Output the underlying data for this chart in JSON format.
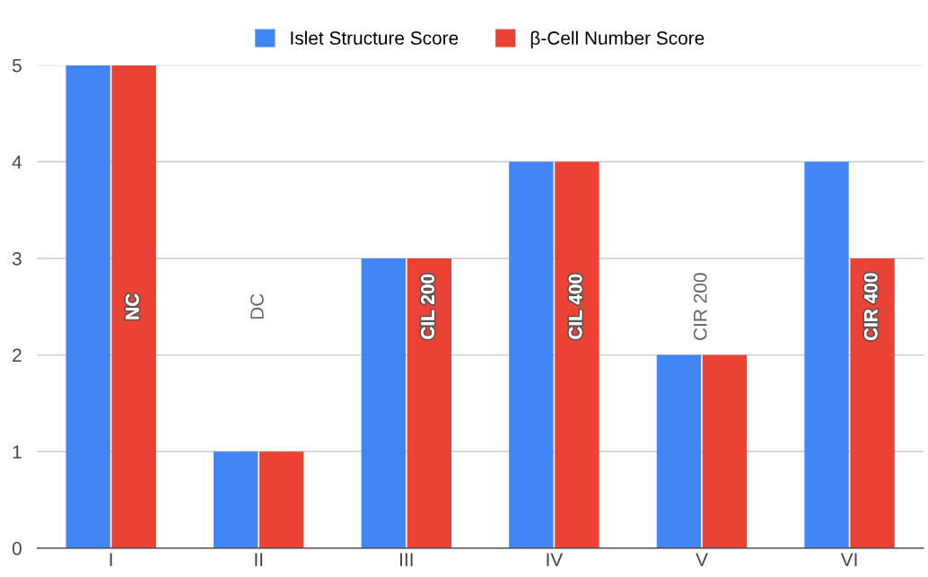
{
  "chart_data": {
    "type": "bar",
    "categories": [
      "I",
      "II",
      "III",
      "IV",
      "V",
      "VI"
    ],
    "series": [
      {
        "name": "Islet Structure Score",
        "color": "#4285f4",
        "values": [
          5,
          1,
          3,
          4,
          2,
          4
        ]
      },
      {
        "name": "β-Cell Number Score",
        "color": "#ea4335",
        "values": [
          5,
          1,
          3,
          4,
          2,
          3
        ]
      }
    ],
    "ylim": [
      0,
      5
    ],
    "yticks": [
      0,
      1,
      2,
      3,
      4,
      5
    ],
    "grid": "y",
    "legend": "top",
    "annotations": [
      "NC",
      "DC",
      "CIL 200",
      "CIL 400",
      "CIR 200",
      "CIR 400"
    ]
  }
}
